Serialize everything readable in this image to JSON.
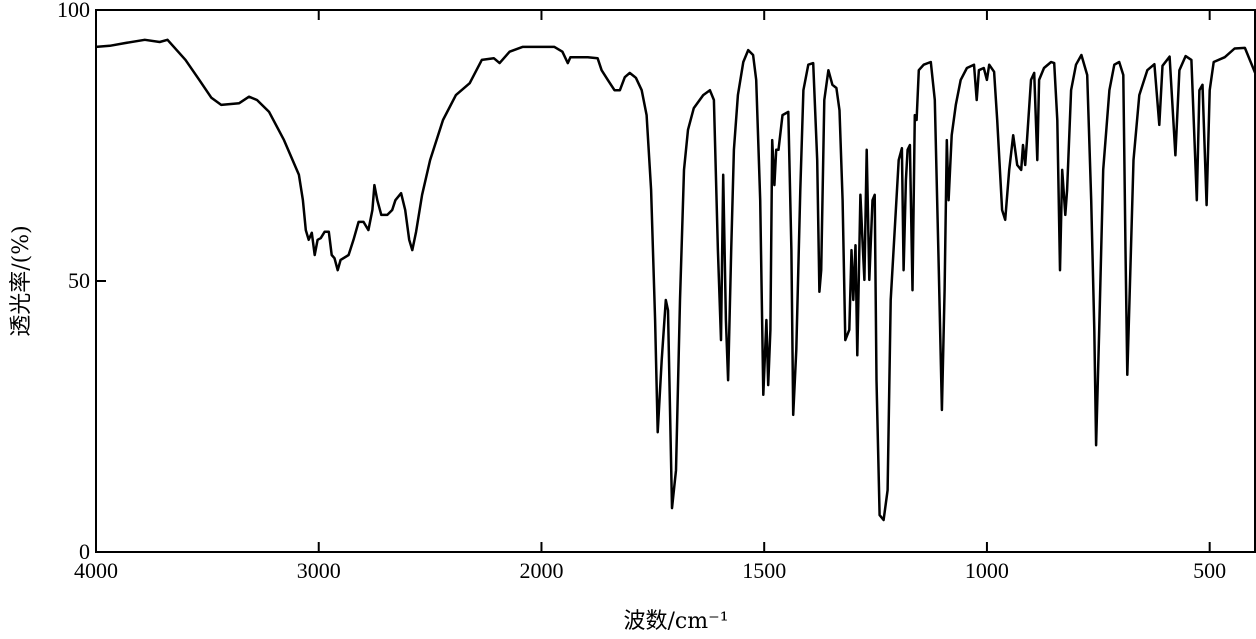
{
  "chart_data": {
    "type": "line",
    "x_label": "波数/cm⁻¹",
    "y_label": "透光率/(%)",
    "xlim": [
      4000,
      396
    ],
    "x_scale_break": 2000,
    "x_scale_ratio": 2,
    "xticks": [
      4000,
      3000,
      2000,
      1500,
      1000,
      500
    ],
    "ylim": [
      0,
      100
    ],
    "yticks": [
      0,
      50,
      100
    ],
    "x": [
      4000,
      3938,
      3871,
      3781,
      3714,
      3679,
      3598,
      3536,
      3482,
      3438,
      3357,
      3313,
      3277,
      3223,
      3156,
      3089,
      3071,
      3058,
      3045,
      3031,
      3018,
      3005,
      2991,
      2973,
      2955,
      2942,
      2929,
      2915,
      2902,
      2866,
      2844,
      2821,
      2799,
      2777,
      2759,
      2750,
      2737,
      2719,
      2692,
      2670,
      2656,
      2630,
      2612,
      2594,
      2580,
      2563,
      2536,
      2500,
      2442,
      2384,
      2322,
      2268,
      2214,
      2188,
      2143,
      2085,
      2000,
      1971,
      1953,
      1941,
      1935,
      1896,
      1874,
      1865,
      1851,
      1836,
      1824,
      1813,
      1802,
      1788,
      1775,
      1764,
      1754,
      1745,
      1739,
      1730,
      1721,
      1716,
      1707,
      1698,
      1689,
      1680,
      1671,
      1658,
      1637,
      1622,
      1613,
      1604,
      1597,
      1592,
      1586,
      1581,
      1574,
      1568,
      1559,
      1547,
      1536,
      1525,
      1518,
      1509,
      1502,
      1495,
      1491,
      1486,
      1482,
      1477,
      1473,
      1468,
      1459,
      1446,
      1439,
      1435,
      1428,
      1419,
      1412,
      1401,
      1390,
      1381,
      1376,
      1372,
      1365,
      1356,
      1347,
      1338,
      1331,
      1324,
      1318,
      1309,
      1304,
      1300,
      1295,
      1291,
      1284,
      1279,
      1275,
      1270,
      1264,
      1257,
      1252,
      1248,
      1241,
      1232,
      1223,
      1216,
      1207,
      1198,
      1191,
      1187,
      1182,
      1178,
      1173,
      1167,
      1162,
      1158,
      1153,
      1142,
      1126,
      1117,
      1108,
      1101,
      1095,
      1090,
      1086,
      1079,
      1070,
      1059,
      1045,
      1029,
      1023,
      1018,
      1007,
      1000,
      995,
      984,
      977,
      966,
      959,
      950,
      941,
      932,
      923,
      919,
      914,
      910,
      901,
      894,
      887,
      883,
      872,
      856,
      849,
      842,
      836,
      831,
      824,
      820,
      811,
      800,
      788,
      775,
      766,
      759,
      755,
      748,
      739,
      725,
      714,
      703,
      694,
      689,
      685,
      680,
      671,
      658,
      640,
      624,
      613,
      606,
      590,
      577,
      568,
      554,
      541,
      529,
      523,
      516,
      507,
      500,
      491,
      466,
      444,
      421,
      396
    ],
    "series": [
      {
        "color": "#000000",
        "values": [
          93.2,
          93.4,
          93.9,
          94.5,
          94.1,
          94.5,
          90.8,
          87.1,
          83.8,
          82.5,
          82.8,
          84.0,
          83.4,
          81.2,
          76.0,
          69.6,
          64.9,
          59.4,
          57.6,
          58.9,
          54.8,
          57.6,
          57.9,
          59.1,
          59.1,
          54.8,
          54.2,
          52.0,
          53.9,
          54.8,
          57.6,
          60.9,
          60.9,
          59.4,
          63.1,
          67.7,
          64.9,
          62.2,
          62.2,
          63.1,
          64.9,
          66.2,
          63.1,
          57.6,
          55.7,
          59.1,
          65.9,
          72.3,
          79.7,
          84.3,
          86.5,
          90.8,
          91.1,
          90.2,
          92.3,
          93.2,
          93.2,
          93.2,
          92.3,
          90.2,
          91.3,
          91.3,
          91.1,
          88.9,
          87.1,
          85.2,
          85.2,
          87.6,
          88.4,
          87.5,
          85.2,
          80.6,
          66.8,
          42.8,
          22.1,
          35.4,
          46.5,
          44.6,
          8.1,
          15.1,
          46.5,
          70.5,
          77.9,
          81.9,
          84.3,
          85.2,
          83.4,
          55.7,
          39.1,
          69.6,
          42.8,
          31.7,
          55.7,
          74.2,
          84.3,
          90.4,
          92.6,
          91.7,
          87.1,
          64.9,
          29.0,
          42.8,
          30.8,
          41.0,
          76.0,
          67.7,
          74.2,
          74.2,
          80.6,
          81.2,
          55.7,
          25.3,
          37.3,
          66.8,
          85.2,
          89.9,
          90.2,
          72.3,
          48.0,
          52.0,
          83.4,
          88.9,
          86.2,
          85.6,
          81.5,
          64.9,
          39.1,
          41.0,
          55.7,
          46.5,
          56.6,
          36.3,
          65.9,
          56.6,
          50.2,
          74.2,
          50.2,
          64.9,
          65.9,
          31.7,
          6.8,
          5.9,
          11.4,
          46.5,
          59.4,
          72.3,
          74.5,
          52.0,
          68.6,
          74.2,
          75.1,
          48.3,
          80.6,
          79.7,
          88.9,
          89.9,
          90.4,
          83.4,
          52.0,
          26.2,
          48.3,
          76.0,
          64.9,
          76.9,
          82.5,
          87.1,
          89.3,
          89.9,
          83.4,
          88.9,
          89.3,
          87.1,
          89.9,
          88.6,
          79.7,
          63.1,
          61.3,
          70.5,
          76.9,
          71.4,
          70.5,
          75.1,
          71.4,
          76.0,
          87.1,
          88.4,
          72.3,
          87.1,
          89.3,
          90.4,
          90.2,
          79.7,
          52.0,
          70.5,
          62.2,
          66.8,
          85.2,
          89.9,
          91.7,
          88.0,
          64.9,
          41.0,
          19.7,
          41.0,
          70.5,
          85.2,
          89.9,
          90.4,
          88.0,
          55.7,
          32.7,
          46.5,
          72.3,
          84.3,
          88.9,
          90.0,
          78.8,
          89.7,
          91.4,
          73.2,
          88.9,
          91.5,
          90.8,
          64.9,
          85.2,
          86.2,
          64.0,
          85.2,
          90.4,
          91.3,
          92.9,
          93.0,
          88.0
        ]
      }
    ]
  }
}
